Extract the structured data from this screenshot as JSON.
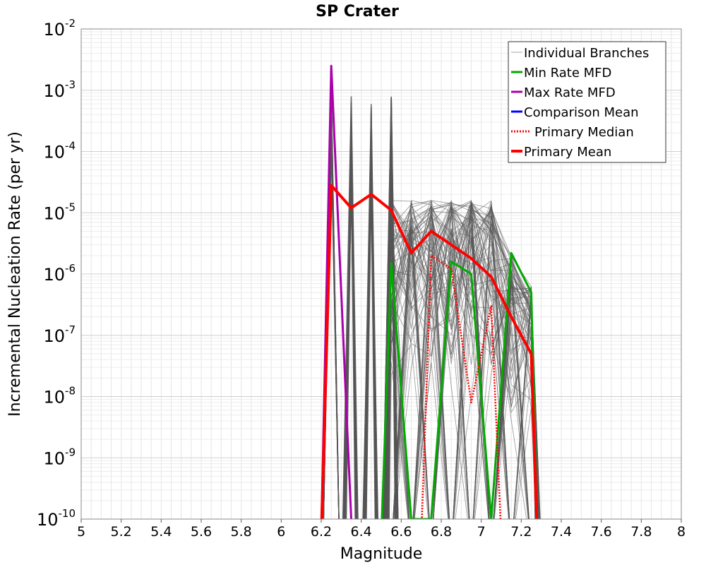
{
  "chart_data": {
    "type": "line",
    "title": "SP Crater",
    "xlabel": "Magnitude",
    "ylabel": "Incremental Nucleation Rate (per yr)",
    "xlim": [
      5,
      8
    ],
    "ylim": [
      1e-10,
      0.01
    ],
    "yscale": "log",
    "grid": true,
    "legend_position": "top-right",
    "x_ticks": [
      "5",
      "5.2",
      "5.4",
      "5.6",
      "5.8",
      "6",
      "6.2",
      "6.4",
      "6.6",
      "6.8",
      "7",
      "7.2",
      "7.4",
      "7.6",
      "7.8",
      "8"
    ],
    "y_ticks": [
      {
        "base": "10",
        "exp": "-10"
      },
      {
        "base": "10",
        "exp": "-9"
      },
      {
        "base": "10",
        "exp": "-8"
      },
      {
        "base": "10",
        "exp": "-7"
      },
      {
        "base": "10",
        "exp": "-6"
      },
      {
        "base": "10",
        "exp": "-5"
      },
      {
        "base": "10",
        "exp": "-4"
      },
      {
        "base": "10",
        "exp": "-3"
      },
      {
        "base": "10",
        "exp": "-2"
      }
    ],
    "series": [
      {
        "name": "Individual Branches",
        "color": "#555555",
        "style": "thin",
        "description_values": "many branch curves between M6.25 and M7.25; spikes at 6.25, 6.35, 6.45, 6.55 reaching ~1.5e-3; envelope up to ~1.5e-5 from 6.55 to 7.15"
      },
      {
        "name": "Min Rate MFD",
        "color": "#00aa00",
        "style": "solid",
        "x": [
          6.55,
          6.65,
          6.75,
          6.85,
          6.95,
          7.05,
          7.15,
          7.25
        ],
        "y": [
          1.5e-06,
          1e-10,
          1e-10,
          1.6e-06,
          1e-06,
          1e-10,
          2.2e-06,
          5e-07
        ]
      },
      {
        "name": "Max Rate MFD",
        "color": "#aa00aa",
        "style": "solid",
        "x": [
          6.25,
          6.35
        ],
        "y": [
          0.0025,
          1e-10
        ]
      },
      {
        "name": "Comparison Mean",
        "color": "#0000ff",
        "style": "solid",
        "x": [],
        "y": []
      },
      {
        "name": "Primary Median",
        "color": "#ff0000",
        "style": "dotted",
        "x": [
          6.75,
          6.85,
          6.95,
          7.05
        ],
        "y": [
          2e-06,
          1.2e-06,
          8e-09,
          3e-07
        ]
      },
      {
        "name": "Primary Mean",
        "color": "#ff0000",
        "style": "thick",
        "x": [
          6.25,
          6.35,
          6.45,
          6.55,
          6.65,
          6.75,
          6.85,
          6.95,
          7.05,
          7.15,
          7.25
        ],
        "y": [
          2.8e-05,
          1.2e-05,
          2e-05,
          1.1e-05,
          2.2e-06,
          5e-06,
          3e-06,
          1.8e-06,
          9e-07,
          2e-07,
          5e-08
        ]
      }
    ]
  }
}
